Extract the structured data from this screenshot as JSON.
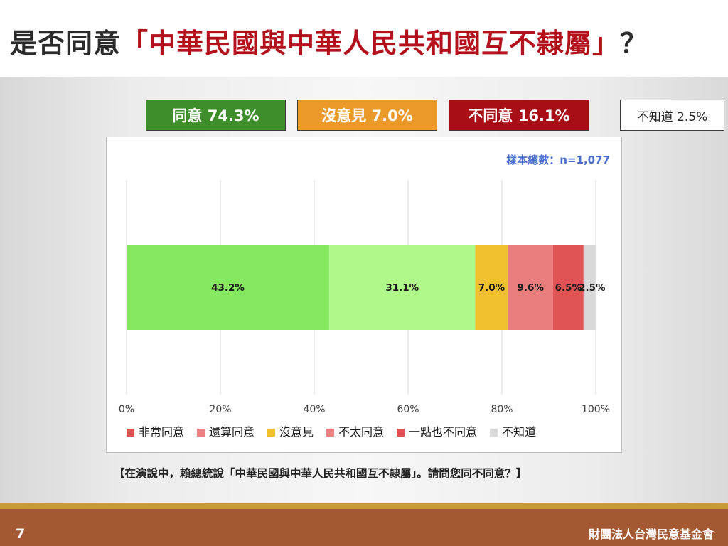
{
  "title": {
    "prefix": "是否同意",
    "highlight": "「中華民國與中華人民共和國互不隸屬」",
    "suffix": "？"
  },
  "summary": {
    "agree": "同意 74.3%",
    "no_opinion": "沒意見 7.0%",
    "disagree": "不同意 16.1%",
    "dont_know": "不知道 2.5%"
  },
  "question": "【在演說中，賴總統說「中華民國與中華人民共和國互不隸屬」。請問您同不同意？】",
  "footer": {
    "page_number": "7",
    "organization": "財團法人台灣民意基金會"
  },
  "chart_data": {
    "type": "bar",
    "orientation": "horizontal",
    "stacked": true,
    "annotation": "樣本總數：n=1,077",
    "xlim": [
      0,
      100
    ],
    "xticks": [
      "0%",
      "20%",
      "40%",
      "60%",
      "80%",
      "100%"
    ],
    "grid": true,
    "legend_position": "bottom",
    "series": [
      {
        "name": "非常同意",
        "value": 43.2,
        "label": "43.2%",
        "bar_color": "#86e861",
        "legend_color": "#e05252"
      },
      {
        "name": "還算同意",
        "value": 31.1,
        "label": "31.1%",
        "bar_color": "#aef98a",
        "legend_color": "#ec8080"
      },
      {
        "name": "沒意見",
        "value": 7.0,
        "label": "7.0%",
        "bar_color": "#f0c02e",
        "legend_color": "#f0c02e"
      },
      {
        "name": "不太同意",
        "value": 9.6,
        "label": "9.6%",
        "bar_color": "#e87e7e",
        "legend_color": "#ec8080"
      },
      {
        "name": "一點也不同意",
        "value": 6.5,
        "label": "6.5%",
        "bar_color": "#e05454",
        "legend_color": "#e05252"
      },
      {
        "name": "不知道",
        "value": 2.5,
        "label": "2.5%",
        "bar_color": "#d9d9d9",
        "legend_color": "#d9d9d9"
      }
    ]
  }
}
